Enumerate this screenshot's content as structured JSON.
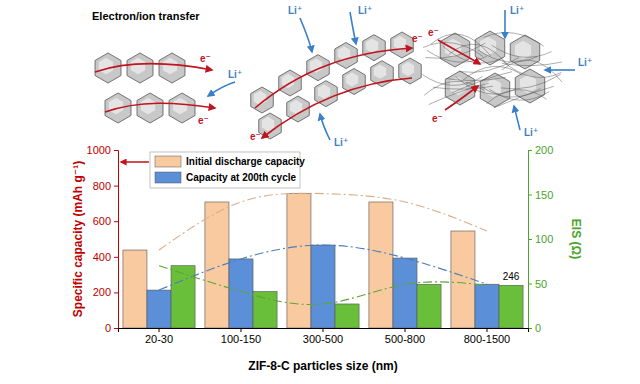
{
  "chart_data": {
    "type": "bar",
    "x_label": "ZIF-8-C particles size (nm)",
    "y_label": "Specific capacity (mAh g⁻¹)",
    "y2_label": "EIS (Ω)",
    "categories": [
      "20-30",
      "100-150",
      "300-500",
      "500-800",
      "800-1500"
    ],
    "series": [
      {
        "name": "Initial discharge capacity",
        "color": "#f9c9a0",
        "values": [
          438,
          708,
          755,
          708,
          545
        ],
        "line_style": "dashdot"
      },
      {
        "name": "Capacity at 200th cycle",
        "color": "#5b8fd8",
        "values": [
          213,
          388,
          466,
          393,
          246
        ],
        "line_style": "dashdot"
      },
      {
        "color": "#6abf3a",
        "values": [
          70,
          41,
          27,
          49,
          48
        ],
        "axis": "y2",
        "line_style": "dashdot"
      }
    ],
    "ylim": [
      0,
      1000
    ],
    "yticks": [
      0,
      200,
      400,
      600,
      800,
      1000
    ],
    "y2lim": [
      0,
      200
    ],
    "y2ticks": [
      0,
      50,
      100,
      150,
      200
    ],
    "legend": "upper left",
    "annotations": [
      {
        "text": "246",
        "category": "800-1500",
        "value": 246
      }
    ]
  },
  "diagram": {
    "title": "Electron/ion transfer",
    "panels": [
      {
        "labels": [
          "e⁻",
          "e⁻",
          "Li⁺"
        ]
      },
      {
        "labels": [
          "Li⁺",
          "Li⁺",
          "e⁻",
          "e⁻",
          "Li⁺"
        ]
      },
      {
        "labels": [
          "e⁻",
          "Li⁺",
          "Li⁺",
          "e⁻",
          "Li⁺"
        ]
      }
    ]
  }
}
